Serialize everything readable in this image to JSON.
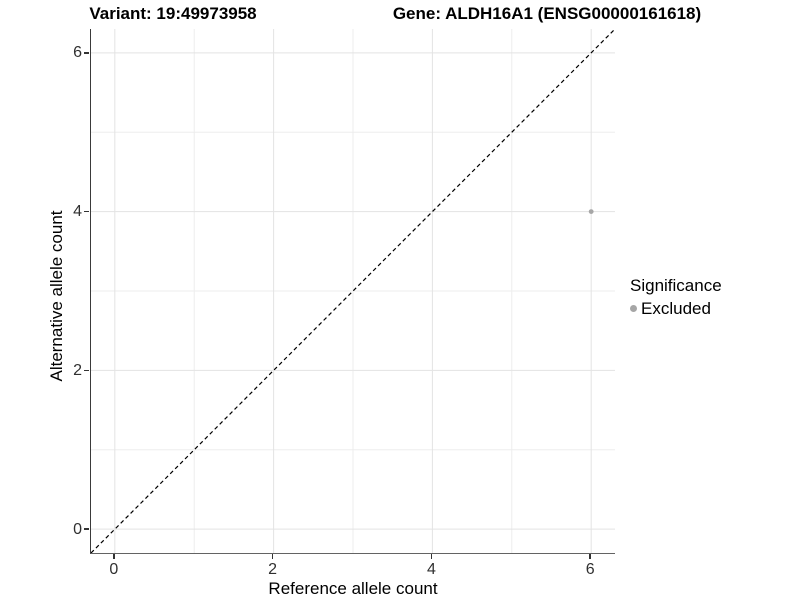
{
  "header": {
    "variant_title": "Variant: 19:49973958",
    "gene_title": "Gene: ALDH16A1 (ENSG00000161618)"
  },
  "legend": {
    "title": "Significance",
    "items": [
      {
        "label": "Excluded",
        "color": "#a6a6a6"
      }
    ]
  },
  "chart_data": {
    "type": "scatter",
    "title_left": "Variant: 19:49973958",
    "title_right": "Gene: ALDH16A1 (ENSG00000161618)",
    "xlabel": "Reference allele count",
    "ylabel": "Alternative allele count",
    "xlim": [
      -0.3,
      6.3
    ],
    "ylim": [
      -0.3,
      6.3
    ],
    "x_ticks": [
      0,
      2,
      4,
      6
    ],
    "y_ticks": [
      0,
      2,
      4,
      6
    ],
    "x_minor_gridlines": [
      1,
      3,
      5
    ],
    "y_minor_gridlines": [
      1,
      3,
      5
    ],
    "grid": "on",
    "legend_position": "right",
    "series": [
      {
        "name": "Excluded",
        "color": "#a6a6a6",
        "points": [
          {
            "x": 6,
            "y": 4
          }
        ],
        "point_radius": 2.4
      }
    ],
    "reference_line": {
      "kind": "identity y=x",
      "style": "dashed",
      "color": "#000000",
      "x1": -0.3,
      "y1": -0.3,
      "x2": 6.3,
      "y2": 6.3
    }
  },
  "colors": {
    "grid_major": "#e3e3e3",
    "grid_minor": "#ededed",
    "axis_line": "#3a3a3a",
    "tick": "#333333",
    "tick_text": "#303030",
    "point": "#a6a6a6"
  }
}
